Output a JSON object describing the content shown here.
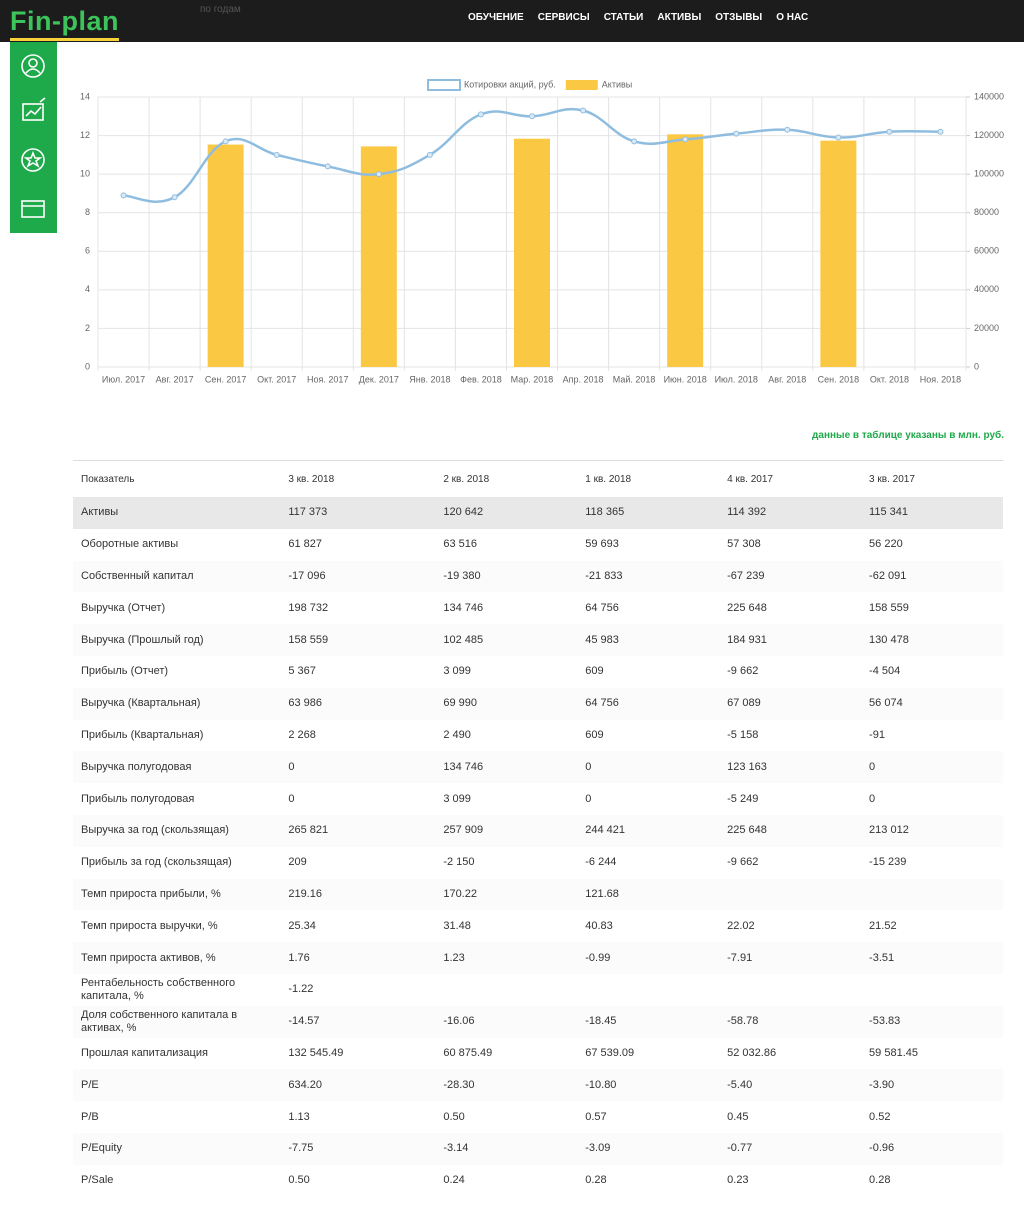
{
  "header": {
    "logo": "Fin-plan",
    "faded_text": "по годам",
    "nav": [
      "ОБУЧЕНИЕ",
      "СЕРВИСЫ",
      "СТАТЬИ",
      "АКТИВЫ",
      "ОТЗЫВЫ",
      "О НАС"
    ]
  },
  "chart_data": {
    "type": "line",
    "categories": [
      "Июл. 2017",
      "Авг. 2017",
      "Сен. 2017",
      "Окт. 2017",
      "Ноя. 2017",
      "Дек. 2017",
      "Янв. 2018",
      "Фев. 2018",
      "Мар. 2018",
      "Апр. 2018",
      "Май. 2018",
      "Июн. 2018",
      "Июл. 2018",
      "Авг. 2018",
      "Сен. 2018",
      "Окт. 2018",
      "Ноя. 2018"
    ],
    "series": [
      {
        "name": "Котировки акций, руб.",
        "type": "line",
        "color": "#8fbde0",
        "values": [
          8.9,
          8.8,
          11.7,
          11.0,
          10.4,
          10.0,
          11.0,
          13.1,
          13.0,
          13.3,
          11.7,
          11.8,
          12.1,
          12.3,
          11.9,
          12.2,
          12.2
        ]
      },
      {
        "name": "Активы",
        "type": "bar",
        "axis": "y2",
        "color": "#fbc844",
        "values": [
          null,
          null,
          115341,
          null,
          null,
          114392,
          null,
          null,
          118365,
          null,
          null,
          120642,
          null,
          null,
          117373,
          null,
          null
        ]
      }
    ],
    "ylim": [
      0,
      14
    ],
    "yticks": [
      0,
      2,
      4,
      6,
      8,
      10,
      12,
      14
    ],
    "y2lim": [
      0,
      140000
    ],
    "y2ticks": [
      0,
      20000,
      40000,
      60000,
      80000,
      100000,
      120000,
      140000
    ],
    "grid": true,
    "legend": "top"
  },
  "note": "данные в таблице указаны в млн. руб.",
  "table": {
    "columns": [
      "Показатель",
      "3 кв. 2018",
      "2 кв. 2018",
      "1 кв. 2018",
      "4 кв. 2017",
      "3 кв. 2017"
    ],
    "rows": [
      [
        "Активы",
        "117 373",
        "120 642",
        "118 365",
        "114 392",
        "115 341"
      ],
      [
        "Оборотные активы",
        "61 827",
        "63 516",
        "59 693",
        "57 308",
        "56 220"
      ],
      [
        "Собственный капитал",
        "-17 096",
        "-19 380",
        "-21 833",
        "-67 239",
        "-62 091"
      ],
      [
        "Выручка (Отчет)",
        "198 732",
        "134 746",
        "64 756",
        "225 648",
        "158 559"
      ],
      [
        "Выручка (Прошлый год)",
        "158 559",
        "102 485",
        "45 983",
        "184 931",
        "130 478"
      ],
      [
        "Прибыль (Отчет)",
        "5 367",
        "3 099",
        "609",
        "-9 662",
        "-4 504"
      ],
      [
        "Выручка (Квартальная)",
        "63 986",
        "69 990",
        "64 756",
        "67 089",
        "56 074"
      ],
      [
        "Прибыль (Квартальная)",
        "2 268",
        "2 490",
        "609",
        "-5 158",
        "-91"
      ],
      [
        "Выручка полугодовая",
        "0",
        "134 746",
        "0",
        "123 163",
        "0"
      ],
      [
        "Прибыль полугодовая",
        "0",
        "3 099",
        "0",
        "-5 249",
        "0"
      ],
      [
        "Выручка за год (скользящая)",
        "265 821",
        "257 909",
        "244 421",
        "225 648",
        "213 012"
      ],
      [
        "Прибыль за год (скользящая)",
        "209",
        "-2 150",
        "-6 244",
        "-9 662",
        "-15 239"
      ],
      [
        "Темп прироста прибыли, %",
        "219.16",
        "170.22",
        "121.68",
        null,
        null
      ],
      [
        "Темп прироста выручки, %",
        "25.34",
        "31.48",
        "40.83",
        "22.02",
        "21.52"
      ],
      [
        "Темп прироста активов, %",
        "1.76",
        "1.23",
        "-0.99",
        "-7.91",
        "-3.51"
      ],
      [
        "Рентабельность собственного капитала, %",
        "-1.22",
        null,
        null,
        null,
        null
      ],
      [
        "Доля собственного капитала в активах, %",
        "-14.57",
        "-16.06",
        "-18.45",
        "-58.78",
        "-53.83"
      ],
      [
        "Прошлая капитализация",
        "132 545.49",
        "60 875.49",
        "67 539.09",
        "52 032.86",
        "59 581.45"
      ],
      [
        "P/E",
        "634.20",
        "-28.30",
        "-10.80",
        "-5.40",
        "-3.90"
      ],
      [
        "P/B",
        "1.13",
        "0.50",
        "0.57",
        "0.45",
        "0.52"
      ],
      [
        "P/Equity",
        "-7.75",
        "-3.14",
        "-3.09",
        "-0.77",
        "-0.96"
      ],
      [
        "P/Sale",
        "0.50",
        "0.24",
        "0.28",
        "0.23",
        "0.28"
      ]
    ]
  }
}
